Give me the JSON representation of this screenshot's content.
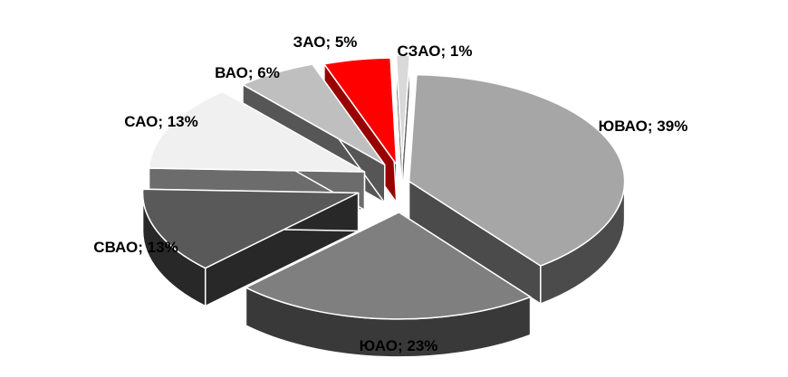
{
  "chart_data": {
    "type": "pie",
    "style": "3d-exploded",
    "title": "",
    "slices": [
      {
        "name": "ЮВАО",
        "value": 39,
        "label": "ЮВАО; 39%",
        "color": "#a6a6a6"
      },
      {
        "name": "ЮАО",
        "value": 23,
        "label": "ЮАО; 23%",
        "color": "#7f7f7f"
      },
      {
        "name": "СВАО",
        "value": 13,
        "label": "СВАО; 13%",
        "color": "#595959"
      },
      {
        "name": "САО",
        "value": 13,
        "label": "САО; 13%",
        "color": "#f0f0f0"
      },
      {
        "name": "ВАО",
        "value": 6,
        "label": "ВАО; 6%",
        "color": "#bfbfbf"
      },
      {
        "name": "ЗАО",
        "value": 5,
        "label": "ЗАО; 5%",
        "color": "#ff0000"
      },
      {
        "name": "СЗАО",
        "value": 1,
        "label": "СЗАО; 1%",
        "color": "#d9d9d9"
      }
    ]
  }
}
